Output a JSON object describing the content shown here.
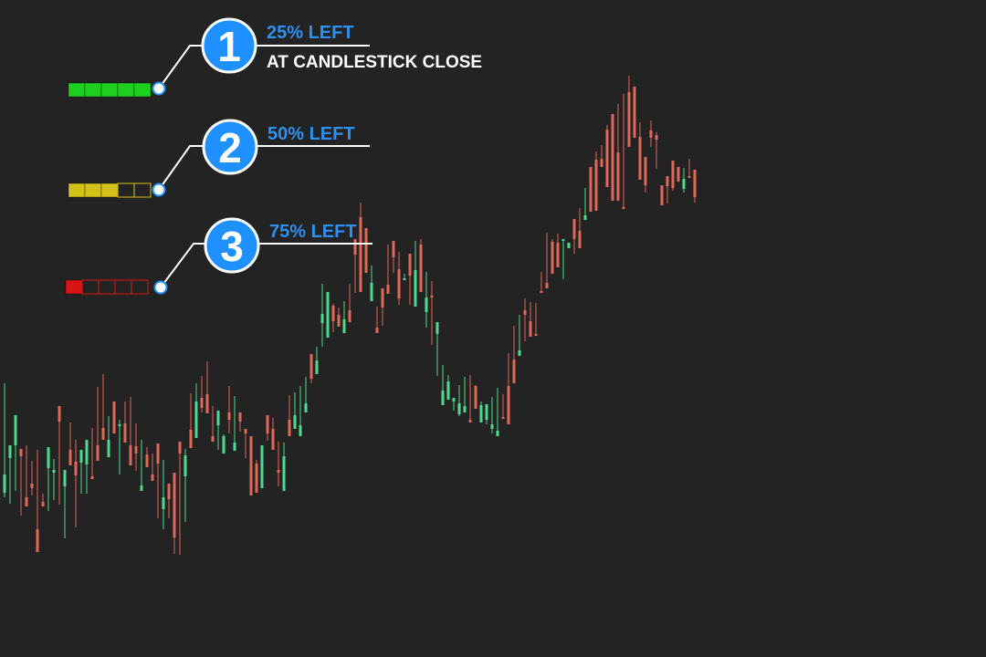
{
  "callouts": [
    {
      "number": "1",
      "label": "25% LEFT",
      "sublabel": "AT CANDLESTICK CLOSE",
      "filled_segments": 5,
      "total_segments": 5,
      "fill_color": "#1fcf1f",
      "remaining_fraction": 0.25
    },
    {
      "number": "2",
      "label": "50% LEFT",
      "sublabel": "",
      "filled_segments": 3,
      "total_segments": 5,
      "fill_color": "#d4c21a",
      "remaining_fraction": 0.5
    },
    {
      "number": "3",
      "label": "75% LEFT",
      "sublabel": "",
      "filled_segments": 1,
      "total_segments": 5,
      "fill_color": "#d81414",
      "remaining_fraction": 0.75
    }
  ],
  "colors": {
    "background": "#232323",
    "bull": "#4ed98c",
    "bear": "#e0685a",
    "accent": "#1e90ff",
    "label_blue": "#2e90f0",
    "line": "#ffffff"
  },
  "chart_data": {
    "type": "candlestick",
    "title": "",
    "xlabel": "",
    "ylabel": "",
    "ylim": [
      0,
      720
    ],
    "grid": false,
    "candles": [
      [
        540,
        520,
        545,
        420
      ],
      [
        502,
        488,
        552,
        500
      ],
      [
        488,
        455,
        538,
        455
      ],
      [
        492,
        500,
        527,
        565
      ],
      [
        545,
        555,
        520,
        488
      ],
      [
        530,
        535,
        543,
        505
      ],
      [
        580,
        605,
        495,
        493
      ],
      [
        550,
        555,
        541,
        543
      ],
      [
        513,
        490,
        560,
        504
      ],
      [
        518,
        515,
        548,
        503
      ],
      [
        445,
        462,
        482,
        553
      ],
      [
        533,
        515,
        590,
        523
      ],
      [
        493,
        510,
        489,
        463
      ],
      [
        506,
        521,
        482,
        578
      ],
      [
        507,
        493,
        521,
        541
      ],
      [
        509,
        482,
        483,
        541
      ],
      [
        522,
        525,
        512,
        469
      ],
      [
        488,
        505,
        442,
        424
      ],
      [
        469,
        482,
        435,
        410
      ],
      [
        501,
        482,
        458,
        456
      ],
      [
        440,
        475,
        452,
        440
      ],
      [
        467,
        465,
        520,
        460
      ],
      [
        464,
        485,
        440,
        443
      ],
      [
        488,
        510,
        438,
        435
      ],
      [
        489,
        497,
        516,
        464
      ],
      [
        538,
        532,
        486,
        482
      ],
      [
        498,
        512,
        490,
        490
      ],
      [
        520,
        527,
        503,
        497
      ],
      [
        486,
        508,
        534,
        568
      ],
      [
        558,
        545,
        504,
        580
      ],
      [
        530,
        547,
        568,
        540
      ],
      [
        518,
        589,
        607,
        553
      ],
      [
        484,
        497,
        608,
        578
      ],
      [
        522,
        499,
        572,
        492
      ],
      [
        471,
        491,
        449,
        431
      ],
      [
        480,
        440,
        420,
        438
      ],
      [
        436,
        447,
        452,
        412
      ],
      [
        432,
        453,
        408,
        396
      ],
      [
        478,
        484,
        445,
        451
      ],
      [
        466,
        450,
        493,
        484
      ],
      [
        497,
        478,
        481,
        476
      ],
      [
        452,
        460,
        475,
        423
      ],
      [
        494,
        485,
        434,
        434
      ],
      [
        452,
        462,
        453,
        473
      ],
      [
        470,
        475,
        502,
        488
      ],
      [
        478,
        543,
        490,
        503
      ],
      [
        508,
        540,
        504,
        528
      ],
      [
        535,
        488,
        520,
        500
      ],
      [
        455,
        475,
        483,
        466
      ],
      [
        470,
        493,
        474,
        458
      ],
      [
        515,
        518,
        533,
        484
      ],
      [
        538,
        500,
        518,
        485
      ],
      [
        460,
        478,
        470,
        433
      ],
      [
        470,
        455,
        458,
        430
      ],
      [
        478,
        466,
        448,
        423
      ],
      [
        452,
        442,
        428,
        413
      ],
      [
        388,
        415,
        420,
        403
      ],
      [
        410,
        395,
        380,
        382
      ],
      [
        354,
        344,
        380,
        311
      ],
      [
        370,
        320,
        332,
        331
      ],
      [
        335,
        352,
        364,
        333
      ],
      [
        345,
        358,
        350,
        337
      ],
      [
        365,
        350,
        333,
        330
      ],
      [
        340,
        353,
        337,
        311
      ],
      [
        262,
        279,
        301,
        321
      ],
      [
        238,
        320,
        260,
        222
      ],
      [
        250,
        299,
        283,
        281
      ],
      [
        330,
        310,
        305,
        291
      ],
      [
        359,
        365,
        336,
        356
      ],
      [
        316,
        337,
        357,
        319
      ],
      [
        312,
        322,
        306,
        268
      ],
      [
        264,
        282,
        299,
        269
      ],
      [
        295,
        327,
        334,
        276
      ],
      [
        307,
        305,
        300,
        302
      ],
      [
        278,
        302,
        288,
        334
      ],
      [
        336,
        296,
        278,
        264
      ],
      [
        268,
        320,
        262,
        266
      ],
      [
        342,
        326,
        298,
        359
      ],
      [
        324,
        324,
        308,
        378
      ],
      [
        366,
        353,
        378,
        412
      ],
      [
        444,
        428,
        409,
        400
      ],
      [
        438,
        418,
        415,
        411
      ],
      [
        440,
        436,
        450,
        445
      ],
      [
        454,
        442,
        422,
        456
      ],
      [
        452,
        445,
        413,
        416
      ],
      [
        460,
        463,
        422,
        411
      ],
      [
        423,
        448,
        422,
        428
      ],
      [
        463,
        444,
        444,
        440
      ],
      [
        460,
        443,
        452,
        465
      ],
      [
        470,
        465,
        435,
        475
      ],
      [
        478,
        472,
        425,
        429
      ],
      [
        457,
        458,
        432,
        456
      ],
      [
        423,
        465,
        440,
        387
      ],
      [
        394,
        420,
        357,
        378
      ],
      [
        390,
        384,
        345,
        377
      ],
      [
        340,
        345,
        374,
        327
      ],
      [
        352,
        369,
        331,
        340
      ],
      [
        366,
        367,
        333,
        332
      ],
      [
        319,
        321,
        317,
        298
      ],
      [
        310,
        316,
        305,
        255
      ],
      [
        265,
        300,
        262,
        262
      ],
      [
        266,
        293,
        256,
        265
      ],
      [
        264,
        262,
        275,
        306
      ],
      [
        272,
        266,
        268,
        269
      ],
      [
        240,
        262,
        278,
        255
      ],
      [
        253,
        272,
        230,
        228
      ],
      [
        241,
        236,
        209,
        206
      ],
      [
        183,
        232,
        221,
        186
      ],
      [
        175,
        231,
        166,
        181
      ],
      [
        174,
        183,
        175,
        159
      ],
      [
        142,
        205,
        137,
        166
      ],
      [
        125,
        220,
        126,
        150
      ],
      [
        167,
        220,
        114,
        124
      ],
      [
        227,
        229,
        103,
        106
      ],
      [
        101,
        161,
        83,
        104
      ],
      [
        95,
        151,
        126,
        130
      ],
      [
        150,
        197,
        134,
        190
      ],
      [
        172,
        203,
        200,
        211
      ],
      [
        143,
        151,
        161,
        132
      ],
      [
        148,
        153,
        145,
        185
      ],
      [
        203,
        225,
        212,
        220
      ],
      [
        193,
        204,
        223,
        212
      ],
      [
        176,
        206,
        209,
        183
      ],
      [
        183,
        199,
        187,
        196
      ],
      [
        207,
        196,
        211,
        184
      ],
      [
        193,
        195,
        192,
        174
      ],
      [
        186,
        216,
        222,
        189
      ]
    ]
  }
}
